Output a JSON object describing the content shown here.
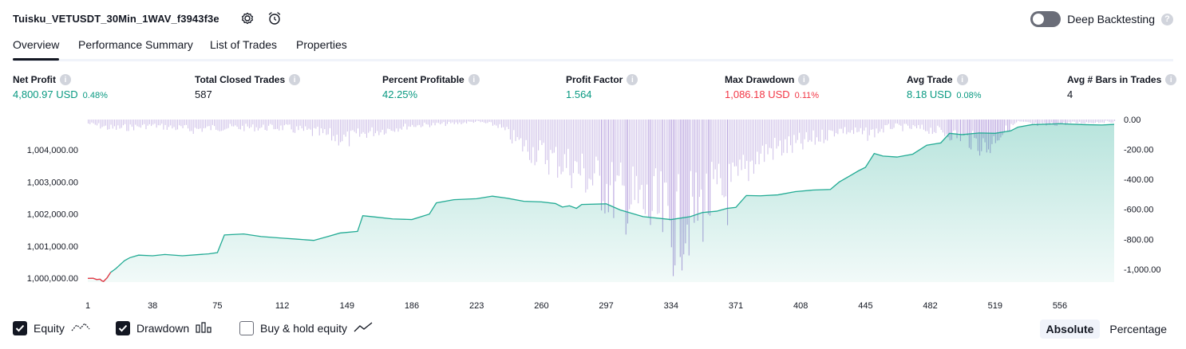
{
  "header": {
    "title": "Tuisku_VETUSDT_30Min_1WAV_f3943f3e",
    "deep_backtesting_label": "Deep Backtesting",
    "deep_backtesting_enabled": false,
    "help_glyph": "?"
  },
  "tabs": [
    {
      "label": "Overview",
      "active": true
    },
    {
      "label": "Performance Summary",
      "active": false
    },
    {
      "label": "List of Trades",
      "active": false
    },
    {
      "label": "Properties",
      "active": false
    }
  ],
  "metrics": [
    {
      "label": "Net Profit",
      "value": "4,800.97 USD",
      "pct": "0.48%",
      "color": "green"
    },
    {
      "label": "Total Closed Trades",
      "value": "587",
      "pct": "",
      "color": "dark"
    },
    {
      "label": "Percent Profitable",
      "value": "42.25%",
      "pct": "",
      "color": "green"
    },
    {
      "label": "Profit Factor",
      "value": "1.564",
      "pct": "",
      "color": "green"
    },
    {
      "label": "Max Drawdown",
      "value": "1,086.18 USD",
      "pct": "0.11%",
      "color": "red"
    },
    {
      "label": "Avg Trade",
      "value": "8.18 USD",
      "pct": "0.08%",
      "color": "green"
    },
    {
      "label": "Avg # Bars in Trades",
      "value": "4",
      "pct": "",
      "color": "dark"
    }
  ],
  "info_glyph": "i",
  "chart_data": {
    "type": "area",
    "equity_axis": {
      "ticks": [
        "1,004,000.00",
        "1,003,000.00",
        "1,002,000.00",
        "1,001,000.00",
        "1,000,000.00"
      ],
      "ylim": [
        999880,
        1004950
      ]
    },
    "drawdown_axis": {
      "ticks": [
        "0.00",
        "-200.00",
        "-400.00",
        "-600.00",
        "-800.00",
        "-1,000.00"
      ],
      "ylim": [
        -1086.18,
        0
      ]
    },
    "x_ticks": [
      "1",
      "38",
      "75",
      "112",
      "149",
      "186",
      "223",
      "260",
      "297",
      "334",
      "371",
      "408",
      "445",
      "482",
      "519",
      "556"
    ],
    "xlim": [
      1,
      587
    ],
    "equity_points": [
      [
        1,
        999995
      ],
      [
        4,
        1000000
      ],
      [
        6,
        999960
      ],
      [
        8,
        999970
      ],
      [
        9,
        999920
      ],
      [
        10,
        999900
      ],
      [
        12,
        1000010
      ],
      [
        14,
        1000180
      ],
      [
        17,
        1000300
      ],
      [
        20,
        1000450
      ],
      [
        22,
        1000550
      ],
      [
        25,
        1000640
      ],
      [
        30,
        1000720
      ],
      [
        38,
        1000700
      ],
      [
        45,
        1000740
      ],
      [
        55,
        1000700
      ],
      [
        70,
        1000760
      ],
      [
        75,
        1000800
      ],
      [
        79,
        1001350
      ],
      [
        90,
        1001380
      ],
      [
        100,
        1001300
      ],
      [
        112,
        1001250
      ],
      [
        120,
        1001220
      ],
      [
        130,
        1001180
      ],
      [
        138,
        1001300
      ],
      [
        145,
        1001410
      ],
      [
        155,
        1001460
      ],
      [
        158,
        1001950
      ],
      [
        165,
        1001910
      ],
      [
        175,
        1001850
      ],
      [
        186,
        1001830
      ],
      [
        196,
        1002000
      ],
      [
        200,
        1002350
      ],
      [
        210,
        1002450
      ],
      [
        223,
        1002480
      ],
      [
        232,
        1002560
      ],
      [
        240,
        1002500
      ],
      [
        250,
        1002400
      ],
      [
        260,
        1002380
      ],
      [
        268,
        1002330
      ],
      [
        272,
        1002220
      ],
      [
        276,
        1002260
      ],
      [
        280,
        1002180
      ],
      [
        283,
        1002300
      ],
      [
        297,
        1002320
      ],
      [
        305,
        1002130
      ],
      [
        318,
        1001920
      ],
      [
        334,
        1001830
      ],
      [
        345,
        1001920
      ],
      [
        352,
        1002050
      ],
      [
        360,
        1002090
      ],
      [
        366,
        1002180
      ],
      [
        371,
        1002210
      ],
      [
        377,
        1002580
      ],
      [
        385,
        1002570
      ],
      [
        395,
        1002600
      ],
      [
        405,
        1002700
      ],
      [
        415,
        1002750
      ],
      [
        425,
        1002770
      ],
      [
        430,
        1003000
      ],
      [
        437,
        1003220
      ],
      [
        441,
        1003350
      ],
      [
        445,
        1003460
      ],
      [
        450,
        1003890
      ],
      [
        455,
        1003810
      ],
      [
        463,
        1003780
      ],
      [
        472,
        1003870
      ],
      [
        480,
        1004150
      ],
      [
        488,
        1004220
      ],
      [
        493,
        1004520
      ],
      [
        500,
        1004480
      ],
      [
        510,
        1004530
      ],
      [
        519,
        1004520
      ],
      [
        528,
        1004600
      ],
      [
        532,
        1004710
      ],
      [
        540,
        1004790
      ],
      [
        556,
        1004820
      ],
      [
        570,
        1004790
      ],
      [
        580,
        1004780
      ],
      [
        587,
        1004800
      ]
    ],
    "drawdown_envelope": [
      [
        1,
        -40
      ],
      [
        15,
        -90
      ],
      [
        38,
        -60
      ],
      [
        60,
        -100
      ],
      [
        75,
        -80
      ],
      [
        112,
        -80
      ],
      [
        130,
        -130
      ],
      [
        149,
        -200
      ],
      [
        160,
        -130
      ],
      [
        186,
        -60
      ],
      [
        210,
        -40
      ],
      [
        223,
        -20
      ],
      [
        235,
        -60
      ],
      [
        248,
        -250
      ],
      [
        260,
        -350
      ],
      [
        275,
        -450
      ],
      [
        290,
        -600
      ],
      [
        310,
        -800
      ],
      [
        325,
        -930
      ],
      [
        334,
        -1086.18
      ],
      [
        345,
        -950
      ],
      [
        355,
        -800
      ],
      [
        365,
        -740
      ],
      [
        371,
        -700
      ],
      [
        380,
        -400
      ],
      [
        390,
        -300
      ],
      [
        408,
        -250
      ],
      [
        430,
        -100
      ],
      [
        445,
        -150
      ],
      [
        460,
        -70
      ],
      [
        482,
        -100
      ],
      [
        500,
        -170
      ],
      [
        515,
        -280
      ],
      [
        519,
        -180
      ],
      [
        532,
        -20
      ],
      [
        545,
        -60
      ],
      [
        556,
        -40
      ],
      [
        570,
        -30
      ],
      [
        587,
        -20
      ]
    ],
    "legend": [
      {
        "label": "Equity",
        "checked": true,
        "icon": "equity-icon"
      },
      {
        "label": "Drawdown",
        "checked": true,
        "icon": "drawdown-icon"
      },
      {
        "label": "Buy & hold equity",
        "checked": false,
        "icon": "buyhold-icon"
      }
    ],
    "colors": {
      "equity_line": "#22ab94",
      "equity_line_negative": "#f23645",
      "equity_fill": "#22ab94",
      "drawdown_bar": "#b39ddb",
      "drawdown_bar_dark": "#7e57c2"
    }
  },
  "footer": {
    "absolute_label": "Absolute",
    "percentage_label": "Percentage",
    "active_mode": "Absolute"
  }
}
